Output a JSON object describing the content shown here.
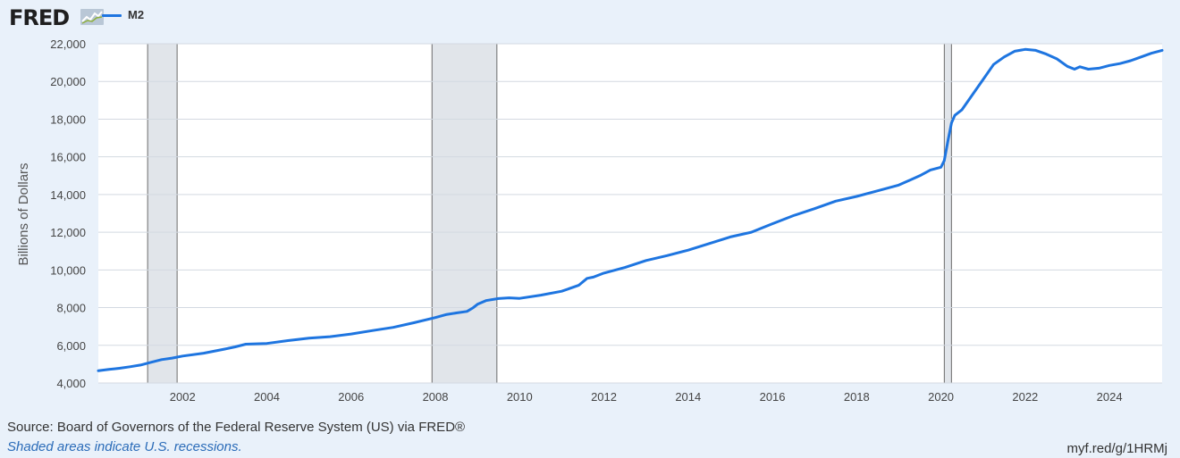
{
  "header": {
    "logo": "FRED",
    "legend_label": "M2"
  },
  "colors": {
    "series": "#1e75e0",
    "recession": "#e1e5ea",
    "grid": "#d3d9e1",
    "background": "#e9f1fa"
  },
  "chart_data": {
    "type": "line",
    "title": "",
    "xlabel": "",
    "ylabel": "Billions of Dollars",
    "ylim": [
      4000,
      22000
    ],
    "xlim": [
      2000.0,
      2025.25
    ],
    "grid": true,
    "legend_position": "top-left",
    "yticks": [
      4000,
      6000,
      8000,
      10000,
      12000,
      14000,
      16000,
      18000,
      20000,
      22000
    ],
    "ytick_labels": [
      "4,000",
      "6,000",
      "8,000",
      "10,000",
      "12,000",
      "14,000",
      "16,000",
      "18,000",
      "20,000",
      "22,000"
    ],
    "xticks": [
      2002,
      2004,
      2006,
      2008,
      2010,
      2012,
      2014,
      2016,
      2018,
      2020,
      2022,
      2024
    ],
    "xtick_labels": [
      "2002",
      "2004",
      "2006",
      "2008",
      "2010",
      "2012",
      "2014",
      "2016",
      "2018",
      "2020",
      "2022",
      "2024"
    ],
    "recessions": [
      [
        2001.17,
        2001.87
      ],
      [
        2007.92,
        2009.46
      ],
      [
        2020.08,
        2020.25
      ]
    ],
    "series": [
      {
        "name": "M2",
        "x": [
          2000.0,
          2000.25,
          2000.5,
          2000.75,
          2001.0,
          2001.25,
          2001.5,
          2001.75,
          2002.0,
          2002.5,
          2003.0,
          2003.25,
          2003.5,
          2003.75,
          2004.0,
          2004.5,
          2005.0,
          2005.5,
          2006.0,
          2006.5,
          2007.0,
          2007.5,
          2008.0,
          2008.25,
          2008.5,
          2008.75,
          2008.9,
          2009.0,
          2009.2,
          2009.5,
          2009.75,
          2010.0,
          2010.5,
          2011.0,
          2011.4,
          2011.6,
          2011.75,
          2012.0,
          2012.5,
          2013.0,
          2013.5,
          2014.0,
          2014.5,
          2015.0,
          2015.5,
          2016.0,
          2016.5,
          2017.0,
          2017.5,
          2018.0,
          2018.5,
          2019.0,
          2019.5,
          2019.75,
          2020.0,
          2020.08,
          2020.17,
          2020.25,
          2020.33,
          2020.5,
          2020.75,
          2021.0,
          2021.25,
          2021.5,
          2021.75,
          2022.0,
          2022.25,
          2022.5,
          2022.75,
          2023.0,
          2023.17,
          2023.3,
          2023.5,
          2023.75,
          2024.0,
          2024.25,
          2024.5,
          2024.75,
          2025.0,
          2025.25
        ],
        "values": [
          4650,
          4720,
          4780,
          4860,
          4950,
          5100,
          5240,
          5320,
          5430,
          5580,
          5800,
          5920,
          6060,
          6080,
          6100,
          6250,
          6380,
          6460,
          6600,
          6780,
          6950,
          7200,
          7470,
          7630,
          7720,
          7800,
          8000,
          8180,
          8370,
          8480,
          8520,
          8490,
          8660,
          8870,
          9180,
          9550,
          9620,
          9830,
          10130,
          10500,
          10760,
          11050,
          11400,
          11750,
          12000,
          12450,
          12880,
          13250,
          13650,
          13900,
          14200,
          14500,
          15000,
          15300,
          15450,
          15800,
          16900,
          17800,
          18200,
          18500,
          19300,
          20100,
          20900,
          21300,
          21600,
          21700,
          21650,
          21450,
          21200,
          20800,
          20650,
          20780,
          20650,
          20700,
          20850,
          20950,
          21100,
          21300,
          21500,
          21650
        ]
      }
    ]
  },
  "footer": {
    "source": "Source: Board of Governors of the Federal Reserve System (US) via FRED®",
    "note": "Shaded areas indicate U.S. recessions.",
    "link": "myf.red/g/1HRMj"
  }
}
